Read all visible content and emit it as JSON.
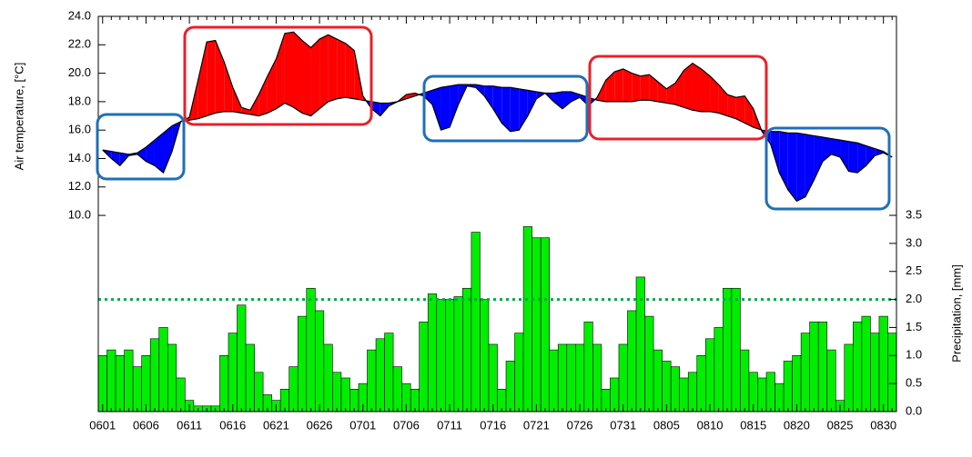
{
  "chart_data": {
    "type": "combo",
    "ylabel": "Air temperature, [°C]",
    "y2label": "Precipitation, [mm]",
    "categories": [
      "0601",
      null,
      null,
      null,
      null,
      "0606",
      null,
      null,
      null,
      null,
      "0611",
      null,
      null,
      null,
      null,
      "0616",
      null,
      null,
      null,
      null,
      "0621",
      null,
      null,
      null,
      null,
      "0626",
      null,
      null,
      null,
      null,
      "0701",
      null,
      null,
      null,
      null,
      "0706",
      null,
      null,
      null,
      null,
      "0711",
      null,
      null,
      null,
      null,
      "0716",
      null,
      null,
      null,
      null,
      "0721",
      null,
      null,
      null,
      null,
      "0726",
      null,
      null,
      null,
      null,
      "0731",
      null,
      null,
      null,
      null,
      "0805",
      null,
      null,
      null,
      null,
      "0810",
      null,
      null,
      null,
      null,
      "0815",
      null,
      null,
      null,
      null,
      "0820",
      null,
      null,
      null,
      null,
      "0825",
      null,
      null,
      null,
      null,
      "0830",
      null
    ],
    "series": [
      {
        "type": "line",
        "color": "#000000",
        "values": [
          14.6,
          14.0,
          13.5,
          14.2,
          14.3,
          13.8,
          13.5,
          13.0,
          14.5,
          16.6,
          16.9,
          19.5,
          22.2,
          22.3,
          20.8,
          19.0,
          17.6,
          17.4,
          18.5,
          19.8,
          21.0,
          22.8,
          22.9,
          22.3,
          21.8,
          22.4,
          22.7,
          22.4,
          22.1,
          21.6,
          18.4,
          17.5,
          17.0,
          17.7,
          18.0,
          18.5,
          18.6,
          18.4,
          17.8,
          16.0,
          16.2,
          17.8,
          19.1,
          19.0,
          18.4,
          17.5,
          16.5,
          15.9,
          16.0,
          17.0,
          18.2,
          18.6,
          18.0,
          17.5,
          18.0,
          18.3,
          17.7,
          18.3,
          19.5,
          20.1,
          20.3,
          20.0,
          19.8,
          19.9,
          19.4,
          18.9,
          19.3,
          20.2,
          20.7,
          20.3,
          19.8,
          19.2,
          18.5,
          18.3,
          18.4,
          17.5,
          15.9,
          15.0,
          13.0,
          11.8,
          11.0,
          11.3,
          12.5,
          13.8,
          14.3,
          14.1,
          13.1,
          13.0,
          13.5,
          14.2,
          14.4,
          14.1
        ]
      },
      {
        "type": "line",
        "color": "#000000",
        "values": [
          14.6,
          14.5,
          14.4,
          14.3,
          14.4,
          14.8,
          15.3,
          15.8,
          16.3,
          16.6,
          16.7,
          16.8,
          17.0,
          17.2,
          17.3,
          17.3,
          17.2,
          17.1,
          17.0,
          17.2,
          17.5,
          17.9,
          17.6,
          17.2,
          17.0,
          17.5,
          18.0,
          18.2,
          18.3,
          18.2,
          18.1,
          18.0,
          17.9,
          17.9,
          18.0,
          18.2,
          18.4,
          18.6,
          18.8,
          19.0,
          19.1,
          19.2,
          19.2,
          19.2,
          19.1,
          19.1,
          19.0,
          19.0,
          18.9,
          18.8,
          18.7,
          18.6,
          18.6,
          18.7,
          18.7,
          18.5,
          18.3,
          18.1,
          18.0,
          18.0,
          18.0,
          18.0,
          18.1,
          18.1,
          18.0,
          17.9,
          17.8,
          17.6,
          17.4,
          17.3,
          17.3,
          17.2,
          17.0,
          16.8,
          16.5,
          16.2,
          16.0,
          15.9,
          15.9,
          15.8,
          15.8,
          15.7,
          15.6,
          15.5,
          15.4,
          15.3,
          15.2,
          15.1,
          14.9,
          14.7,
          14.5,
          14.1
        ]
      },
      {
        "type": "bar",
        "axis": "y2",
        "color": "#00ee00",
        "values": [
          1.0,
          1.1,
          1.0,
          1.1,
          0.8,
          1.0,
          1.3,
          1.5,
          1.2,
          0.6,
          0.2,
          0.1,
          0.1,
          0.1,
          1.0,
          1.4,
          1.9,
          1.2,
          0.7,
          0.3,
          0.2,
          0.4,
          0.8,
          1.7,
          2.2,
          1.8,
          1.2,
          0.7,
          0.6,
          0.4,
          0.5,
          1.1,
          1.3,
          1.4,
          0.8,
          0.5,
          0.4,
          1.6,
          2.1,
          2.0,
          2.0,
          2.05,
          2.2,
          3.2,
          2.0,
          1.2,
          0.4,
          0.9,
          1.4,
          3.3,
          3.1,
          3.1,
          1.1,
          1.2,
          1.2,
          1.2,
          1.6,
          1.2,
          0.4,
          0.6,
          1.2,
          1.8,
          2.4,
          1.7,
          1.1,
          0.9,
          0.8,
          0.6,
          0.7,
          1.0,
          1.3,
          1.5,
          2.2,
          2.2,
          1.1,
          0.7,
          0.6,
          0.7,
          0.5,
          0.9,
          1.0,
          1.4,
          1.6,
          1.6,
          1.1,
          0.2,
          1.2,
          1.6,
          1.7,
          1.4,
          1.7,
          1.4
        ]
      }
    ],
    "fill": {
      "above": "#ff0000",
      "below": "#0000ff"
    },
    "reference_line": {
      "axis": "y2",
      "value": 2,
      "color": "#00aa44"
    },
    "ylim": [
      -3.8,
      24
    ],
    "yticks": [
      {
        "value": 10,
        "label": "10.0"
      },
      {
        "value": 12,
        "label": "12.0"
      },
      {
        "value": 14,
        "label": "14.0"
      },
      {
        "value": 16,
        "label": "16.0"
      },
      {
        "value": 18,
        "label": "18.0"
      },
      {
        "value": 20,
        "label": "20.0"
      },
      {
        "value": 22,
        "label": "22.0"
      },
      {
        "value": 24,
        "label": "24.0"
      }
    ],
    "y2lim": [
      0,
      7.05
    ],
    "y2ticks": [
      {
        "value": 0,
        "label": "0.0"
      },
      {
        "value": 0.5,
        "label": "0.5"
      },
      {
        "value": 1,
        "label": "1.0"
      },
      {
        "value": 1.5,
        "label": "1.5"
      },
      {
        "value": 2,
        "label": "2.0"
      },
      {
        "value": 2.5,
        "label": "2.5"
      },
      {
        "value": 3,
        "label": "3.0"
      },
      {
        "value": 3.5,
        "label": "3.5"
      }
    ]
  }
}
